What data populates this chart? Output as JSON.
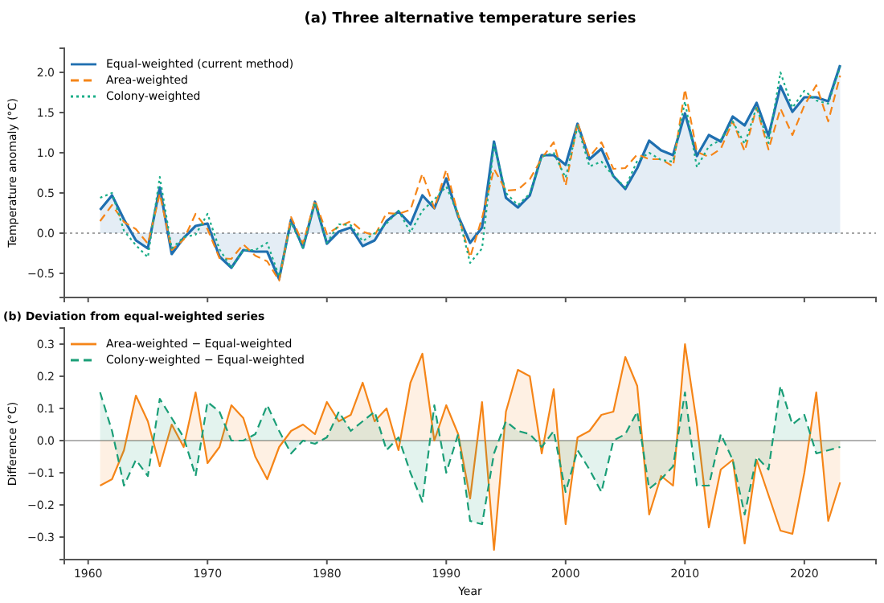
{
  "chart_data": [
    {
      "type": "line",
      "title": "(a) Three alternative temperature series",
      "ylabel": "Temperature anomaly (°C)",
      "x": [
        1961,
        1962,
        1963,
        1964,
        1965,
        1966,
        1967,
        1968,
        1969,
        1970,
        1971,
        1972,
        1973,
        1974,
        1975,
        1976,
        1977,
        1978,
        1979,
        1980,
        1981,
        1982,
        1983,
        1984,
        1985,
        1986,
        1987,
        1988,
        1989,
        1990,
        1991,
        1992,
        1993,
        1994,
        1995,
        1996,
        1997,
        1998,
        1999,
        2000,
        2001,
        2002,
        2003,
        2004,
        2005,
        2006,
        2007,
        2008,
        2009,
        2010,
        2011,
        2012,
        2013,
        2014,
        2015,
        2016,
        2017,
        2018,
        2019,
        2020,
        2021,
        2022,
        2023
      ],
      "xlim": [
        1958,
        2026
      ],
      "xticks": [
        {
          "value": 1960,
          "label": null
        },
        {
          "value": 1970,
          "label": null
        },
        {
          "value": 1980,
          "label": null
        },
        {
          "value": 1990,
          "label": null
        },
        {
          "value": 2000,
          "label": null
        },
        {
          "value": 2010,
          "label": null
        },
        {
          "value": 2020,
          "label": null
        }
      ],
      "ylim": [
        -0.8,
        2.3
      ],
      "yticks": [
        -0.5,
        {
          "value": 0,
          "label": "0.0"
        },
        0.5,
        {
          "value": 1,
          "label": "1.0"
        },
        1.5,
        {
          "value": 2,
          "label": "2.0"
        }
      ],
      "tick_labels": "y",
      "legend": "top left",
      "ref_lines": [
        {
          "axis": "y",
          "value": 0,
          "color": "#888888",
          "line_style": "dotted"
        }
      ],
      "series": [
        {
          "name": "Equal-weighted (current method)",
          "type": "area",
          "color": "#1f6fb0",
          "line_style": "solid",
          "values": [
            0.29,
            0.47,
            0.17,
            -0.09,
            -0.19,
            0.57,
            -0.26,
            -0.06,
            0.09,
            0.12,
            -0.29,
            -0.43,
            -0.21,
            -0.23,
            -0.23,
            -0.57,
            0.17,
            -0.18,
            0.39,
            -0.13,
            0.02,
            0.07,
            -0.16,
            -0.09,
            0.15,
            0.27,
            0.11,
            0.47,
            0.31,
            0.68,
            0.21,
            -0.12,
            0.07,
            1.14,
            0.44,
            0.32,
            0.47,
            0.97,
            0.97,
            0.85,
            1.36,
            0.92,
            1.05,
            0.71,
            0.55,
            0.81,
            1.15,
            1.03,
            0.97,
            1.49,
            0.96,
            1.22,
            1.14,
            1.45,
            1.34,
            1.62,
            1.21,
            1.83,
            1.51,
            1.69,
            1.69,
            1.64,
            2.09
          ]
        },
        {
          "name": "Area-weighted",
          "color": "#f58518",
          "line_style": "dashed",
          "values": [
            0.15,
            0.35,
            0.14,
            0.05,
            -0.13,
            0.49,
            -0.21,
            -0.08,
            0.24,
            0.05,
            -0.31,
            -0.32,
            -0.14,
            -0.28,
            -0.35,
            -0.59,
            0.2,
            -0.13,
            0.41,
            -0.01,
            0.08,
            0.15,
            0.02,
            -0.03,
            0.25,
            0.24,
            0.29,
            0.74,
            0.31,
            0.79,
            0.23,
            -0.3,
            0.19,
            0.8,
            0.53,
            0.54,
            0.67,
            0.93,
            1.13,
            0.59,
            1.37,
            0.95,
            1.13,
            0.8,
            0.81,
            0.98,
            0.92,
            0.92,
            0.83,
            1.79,
            1.01,
            0.95,
            1.05,
            1.39,
            1.02,
            1.56,
            1.04,
            1.55,
            1.22,
            1.59,
            1.84,
            1.39,
            1.96
          ]
        },
        {
          "name": "Colony-weighted",
          "color": "#1aae88",
          "line_style": "dotted",
          "values": [
            0.44,
            0.5,
            0.03,
            -0.15,
            -0.3,
            0.7,
            -0.19,
            -0.05,
            -0.02,
            0.24,
            -0.2,
            -0.43,
            -0.21,
            -0.21,
            -0.12,
            -0.54,
            0.13,
            -0.18,
            0.38,
            -0.12,
            0.11,
            0.1,
            -0.1,
            0.0,
            0.12,
            0.28,
            0.01,
            0.28,
            0.42,
            0.58,
            0.23,
            -0.37,
            -0.19,
            1.1,
            0.5,
            0.35,
            0.49,
            0.95,
            1.0,
            0.69,
            1.33,
            0.83,
            0.89,
            0.71,
            0.57,
            0.9,
            1.0,
            0.91,
            0.89,
            1.64,
            0.82,
            1.08,
            1.16,
            1.39,
            1.11,
            1.57,
            1.12,
            2.0,
            1.56,
            1.77,
            1.65,
            1.61,
            2.07
          ]
        }
      ]
    },
    {
      "type": "area",
      "title": "(b) Deviation from equal-weighted series",
      "xlabel": "Year",
      "ylabel": "Difference (°C)",
      "x": [
        1961,
        1962,
        1963,
        1964,
        1965,
        1966,
        1967,
        1968,
        1969,
        1970,
        1971,
        1972,
        1973,
        1974,
        1975,
        1976,
        1977,
        1978,
        1979,
        1980,
        1981,
        1982,
        1983,
        1984,
        1985,
        1986,
        1987,
        1988,
        1989,
        1990,
        1991,
        1992,
        1993,
        1994,
        1995,
        1996,
        1997,
        1998,
        1999,
        2000,
        2001,
        2002,
        2003,
        2004,
        2005,
        2006,
        2007,
        2008,
        2009,
        2010,
        2011,
        2012,
        2013,
        2014,
        2015,
        2016,
        2017,
        2018,
        2019,
        2020,
        2021,
        2022,
        2023
      ],
      "xlim": [
        1958,
        2026
      ],
      "xticks": [
        1960,
        1970,
        1980,
        1990,
        2000,
        2010,
        2020
      ],
      "ylim": [
        -0.37,
        0.35
      ],
      "yticks": [
        -0.3,
        -0.2,
        -0.1,
        {
          "value": 0,
          "label": "0.0"
        },
        0.1,
        0.2,
        0.3
      ],
      "legend": "top left",
      "ref_lines": [
        {
          "axis": "y",
          "value": 0,
          "color": "#999999",
          "line_style": "solid"
        }
      ],
      "series": [
        {
          "name": "Area-weighted − Equal-weighted",
          "color": "#f58518",
          "line_style": "solid",
          "values": [
            -0.14,
            -0.12,
            -0.03,
            0.14,
            0.06,
            -0.08,
            0.05,
            -0.02,
            0.15,
            -0.07,
            -0.02,
            0.11,
            0.07,
            -0.05,
            -0.12,
            -0.02,
            0.03,
            0.05,
            0.02,
            0.12,
            0.06,
            0.08,
            0.18,
            0.06,
            0.1,
            -0.03,
            0.18,
            0.27,
            0.0,
            0.11,
            0.02,
            -0.18,
            0.12,
            -0.34,
            0.09,
            0.22,
            0.2,
            -0.04,
            0.16,
            -0.26,
            0.01,
            0.03,
            0.08,
            0.09,
            0.26,
            0.17,
            -0.23,
            -0.11,
            -0.14,
            0.3,
            0.05,
            -0.27,
            -0.09,
            -0.06,
            -0.32,
            -0.06,
            -0.17,
            -0.28,
            -0.29,
            -0.1,
            0.15,
            -0.25,
            -0.13
          ]
        },
        {
          "name": "Colony-weighted − Equal-weighted",
          "color": "#1a9e77",
          "line_style": "dashed",
          "values": [
            0.15,
            0.03,
            -0.14,
            -0.06,
            -0.11,
            0.13,
            0.07,
            0.01,
            -0.11,
            0.12,
            0.09,
            0.0,
            0.0,
            0.02,
            0.11,
            0.03,
            -0.04,
            0.0,
            -0.01,
            0.01,
            0.09,
            0.03,
            0.06,
            0.09,
            -0.03,
            0.01,
            -0.1,
            -0.19,
            0.11,
            -0.1,
            0.02,
            -0.25,
            -0.26,
            -0.04,
            0.06,
            0.03,
            0.02,
            -0.02,
            0.03,
            -0.16,
            -0.03,
            -0.09,
            -0.16,
            0.0,
            0.02,
            0.09,
            -0.15,
            -0.12,
            -0.08,
            0.15,
            -0.14,
            -0.14,
            0.02,
            -0.06,
            -0.23,
            -0.05,
            -0.09,
            0.17,
            0.05,
            0.08,
            -0.04,
            -0.03,
            -0.02
          ]
        }
      ]
    }
  ]
}
